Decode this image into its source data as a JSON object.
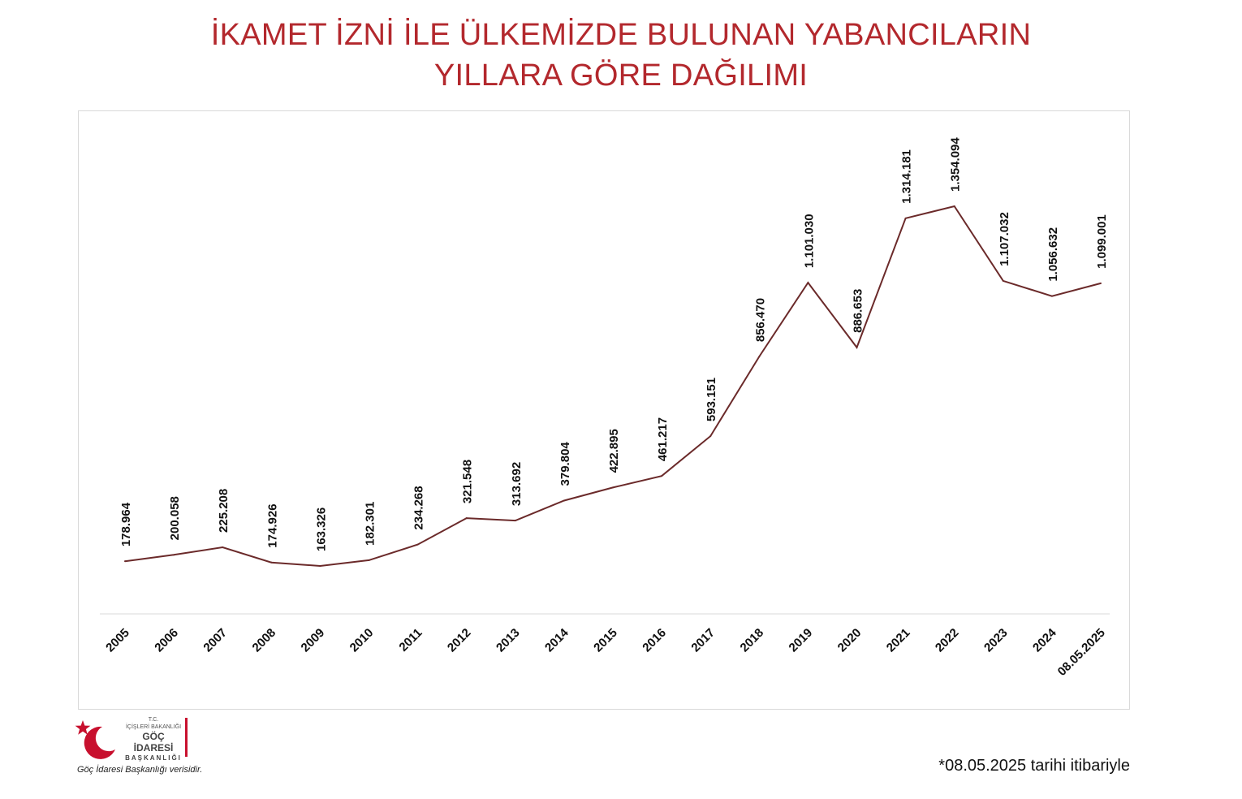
{
  "header": {
    "title_line1": "İKAMET İZNİ İLE ÜLKEMİZDE BULUNAN YABANCILARIN",
    "title_line2": "YILLARA GÖRE DAĞILIMI"
  },
  "chart_data": {
    "type": "line",
    "title": "İKAMET İZNİ İLE ÜLKEMİZDE BULUNAN YABANCILARIN YILLARA GÖRE DAĞILIMI",
    "categories": [
      "2005",
      "2006",
      "2007",
      "2008",
      "2009",
      "2010",
      "2011",
      "2012",
      "2013",
      "2014",
      "2015",
      "2016",
      "2017",
      "2018",
      "2019",
      "2020",
      "2021",
      "2022",
      "2023",
      "2024",
      "08.05.2025"
    ],
    "series": [
      {
        "values": [
          178964,
          200058,
          225208,
          174926,
          163326,
          182301,
          234268,
          321548,
          313692,
          379804,
          422895,
          461217,
          593151,
          856470,
          1101030,
          886653,
          1314181,
          1354094,
          1107032,
          1056632,
          1099001
        ],
        "labels": [
          "178.964",
          "200.058",
          "225.208",
          "174.926",
          "163.326",
          "182.301",
          "234.268",
          "321.548",
          "313.692",
          "379.804",
          "422.895",
          "461.217",
          "593.151",
          "856.470",
          "1.101.030",
          "886.653",
          "1.314.181",
          "1.354.094",
          "1.107.032",
          "1.056.632",
          "1.099.001"
        ],
        "color": "#6b2a2a"
      }
    ],
    "xlabel": "",
    "ylabel": "",
    "grid": false,
    "legend": "none"
  },
  "logo": {
    "line1": "T.C.",
    "line2": "İÇİŞLERİ BAKANLIĞI",
    "line3": "GÖÇ İDARESİ",
    "line4": "BAŞKANLIĞI",
    "star_color": "#c8102e"
  },
  "source_note": "Göç İdaresi Başkanlığı verisidir.",
  "footnote": "*08.05.2025 tarihi itibariyle"
}
